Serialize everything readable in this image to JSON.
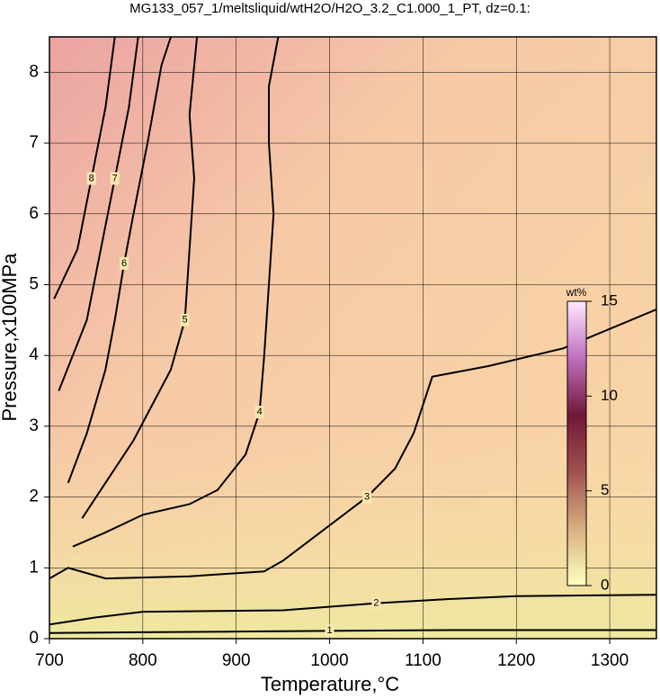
{
  "chart_data": {
    "type": "contour",
    "title": "MG133_057_1/meltsliquid/wtH2O/H2O_3.2_C1.000_1_PT, dz=0.1:",
    "x_label": "Temperature,°C",
    "y_label": "Pressure,x100MPa",
    "xlim": [
      700,
      1350
    ],
    "ylim": [
      0,
      8.5
    ],
    "xticks": [
      700,
      800,
      900,
      1000,
      1100,
      1200,
      1300
    ],
    "yticks": [
      0,
      1,
      2,
      3,
      4,
      5,
      6,
      7,
      8
    ],
    "grid": true,
    "colorbar": {
      "title": "wt%",
      "clim": [
        0,
        15
      ],
      "ticks": [
        0,
        5,
        10,
        15
      ]
    },
    "contours": [
      {
        "level": 1,
        "x": [
          700,
          800,
          900,
          1000,
          1130,
          1350
        ],
        "y": [
          0.08,
          0.09,
          0.1,
          0.11,
          0.12,
          0.12
        ]
      },
      {
        "level": 2,
        "x": [
          700,
          750,
          800,
          950,
          1050,
          1130,
          1200,
          1350
        ],
        "y": [
          0.2,
          0.3,
          0.38,
          0.4,
          0.5,
          0.56,
          0.6,
          0.62
        ]
      },
      {
        "level": 3,
        "x": [
          700,
          720,
          760,
          850,
          930,
          950,
          1000,
          1040,
          1070,
          1090,
          1100,
          1110,
          1170,
          1250,
          1350
        ],
        "y": [
          0.85,
          1.0,
          0.85,
          0.88,
          0.95,
          1.1,
          1.6,
          2.0,
          2.4,
          2.9,
          3.3,
          3.7,
          3.85,
          4.1,
          4.65
        ]
      },
      {
        "level": 4,
        "x": [
          725,
          760,
          800,
          850,
          880,
          910,
          925,
          930,
          935,
          940,
          935,
          935,
          945
        ],
        "y": [
          1.3,
          1.5,
          1.75,
          1.9,
          2.1,
          2.6,
          3.2,
          4.0,
          5.0,
          6.0,
          7.0,
          7.8,
          8.5
        ]
      },
      {
        "level": 5,
        "x": [
          735,
          760,
          790,
          810,
          830,
          845,
          850,
          855,
          850,
          858
        ],
        "y": [
          1.7,
          2.2,
          2.8,
          3.3,
          3.8,
          4.5,
          5.5,
          6.5,
          7.4,
          8.5
        ]
      },
      {
        "level": 6,
        "x": [
          720,
          740,
          760,
          770,
          780,
          790,
          805,
          820,
          830
        ],
        "y": [
          2.2,
          2.9,
          3.8,
          4.5,
          5.3,
          6.0,
          7.0,
          8.1,
          8.5
        ]
      },
      {
        "level": 7,
        "x": [
          710,
          740,
          755,
          770,
          785,
          795
        ],
        "y": [
          3.5,
          4.5,
          5.5,
          6.5,
          7.5,
          8.5
        ]
      },
      {
        "level": 8,
        "x": [
          705,
          730,
          745,
          760,
          770
        ],
        "y": [
          4.8,
          5.5,
          6.5,
          7.5,
          8.5
        ]
      }
    ]
  }
}
